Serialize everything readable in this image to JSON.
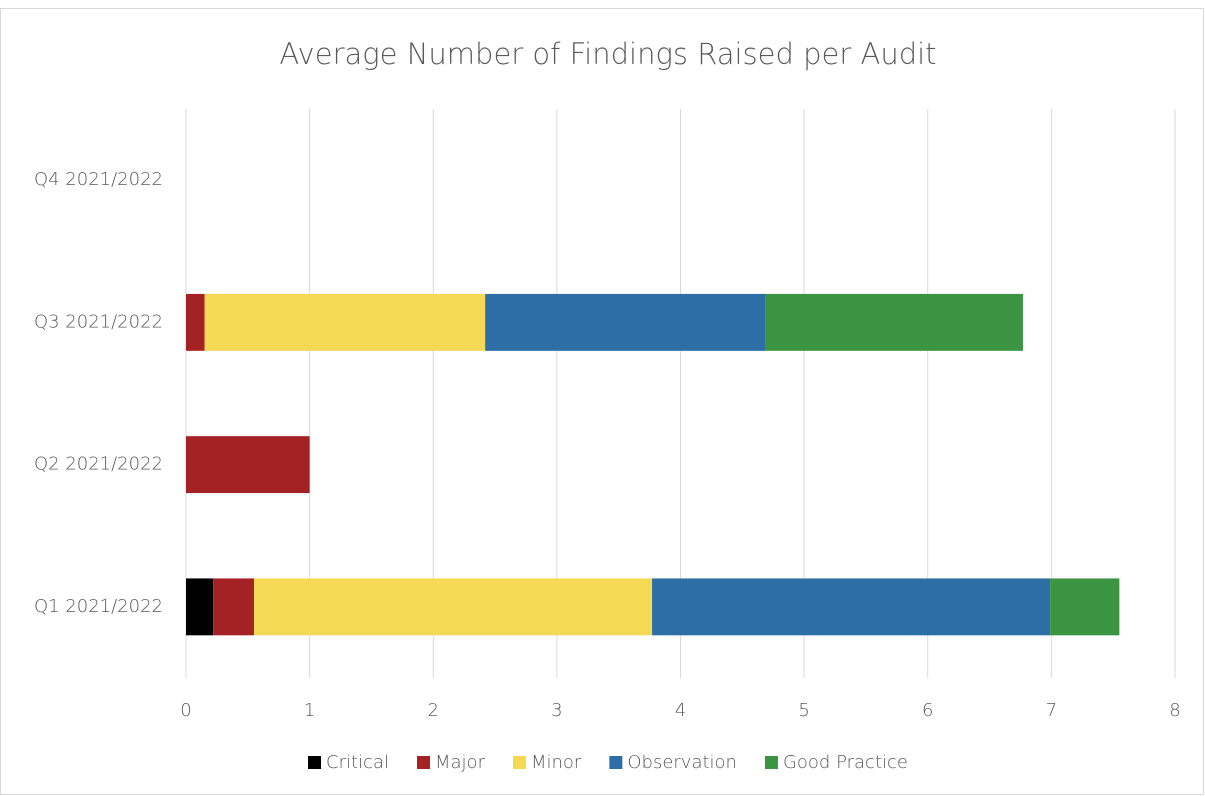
{
  "chart_data": {
    "type": "stacked_barh",
    "title": "Average Number of Findings Raised per Audit",
    "categories": [
      "Q1 2021/2022",
      "Q2 2021/2022",
      "Q3 2021/2022",
      "Q4 2021/2022"
    ],
    "series": [
      {
        "name": "Critical",
        "color": "#000000",
        "values": [
          0.22,
          0,
          0,
          0
        ]
      },
      {
        "name": "Major",
        "color": "#a52224",
        "values": [
          0.33,
          1,
          0.15,
          0
        ]
      },
      {
        "name": "Minor",
        "color": "#f5d955",
        "values": [
          3.22,
          0,
          2.27,
          0
        ]
      },
      {
        "name": "Observation",
        "color": "#2e6ea6",
        "values": [
          3.22,
          0,
          2.27,
          0
        ]
      },
      {
        "name": "Good Practice",
        "color": "#3a9442",
        "values": [
          0.56,
          0,
          2.08,
          0
        ]
      }
    ],
    "xlim": [
      0,
      8
    ],
    "xticks": [
      0,
      1,
      2,
      3,
      4,
      5,
      6,
      7,
      8
    ],
    "grid": true,
    "legend": "bottom"
  }
}
